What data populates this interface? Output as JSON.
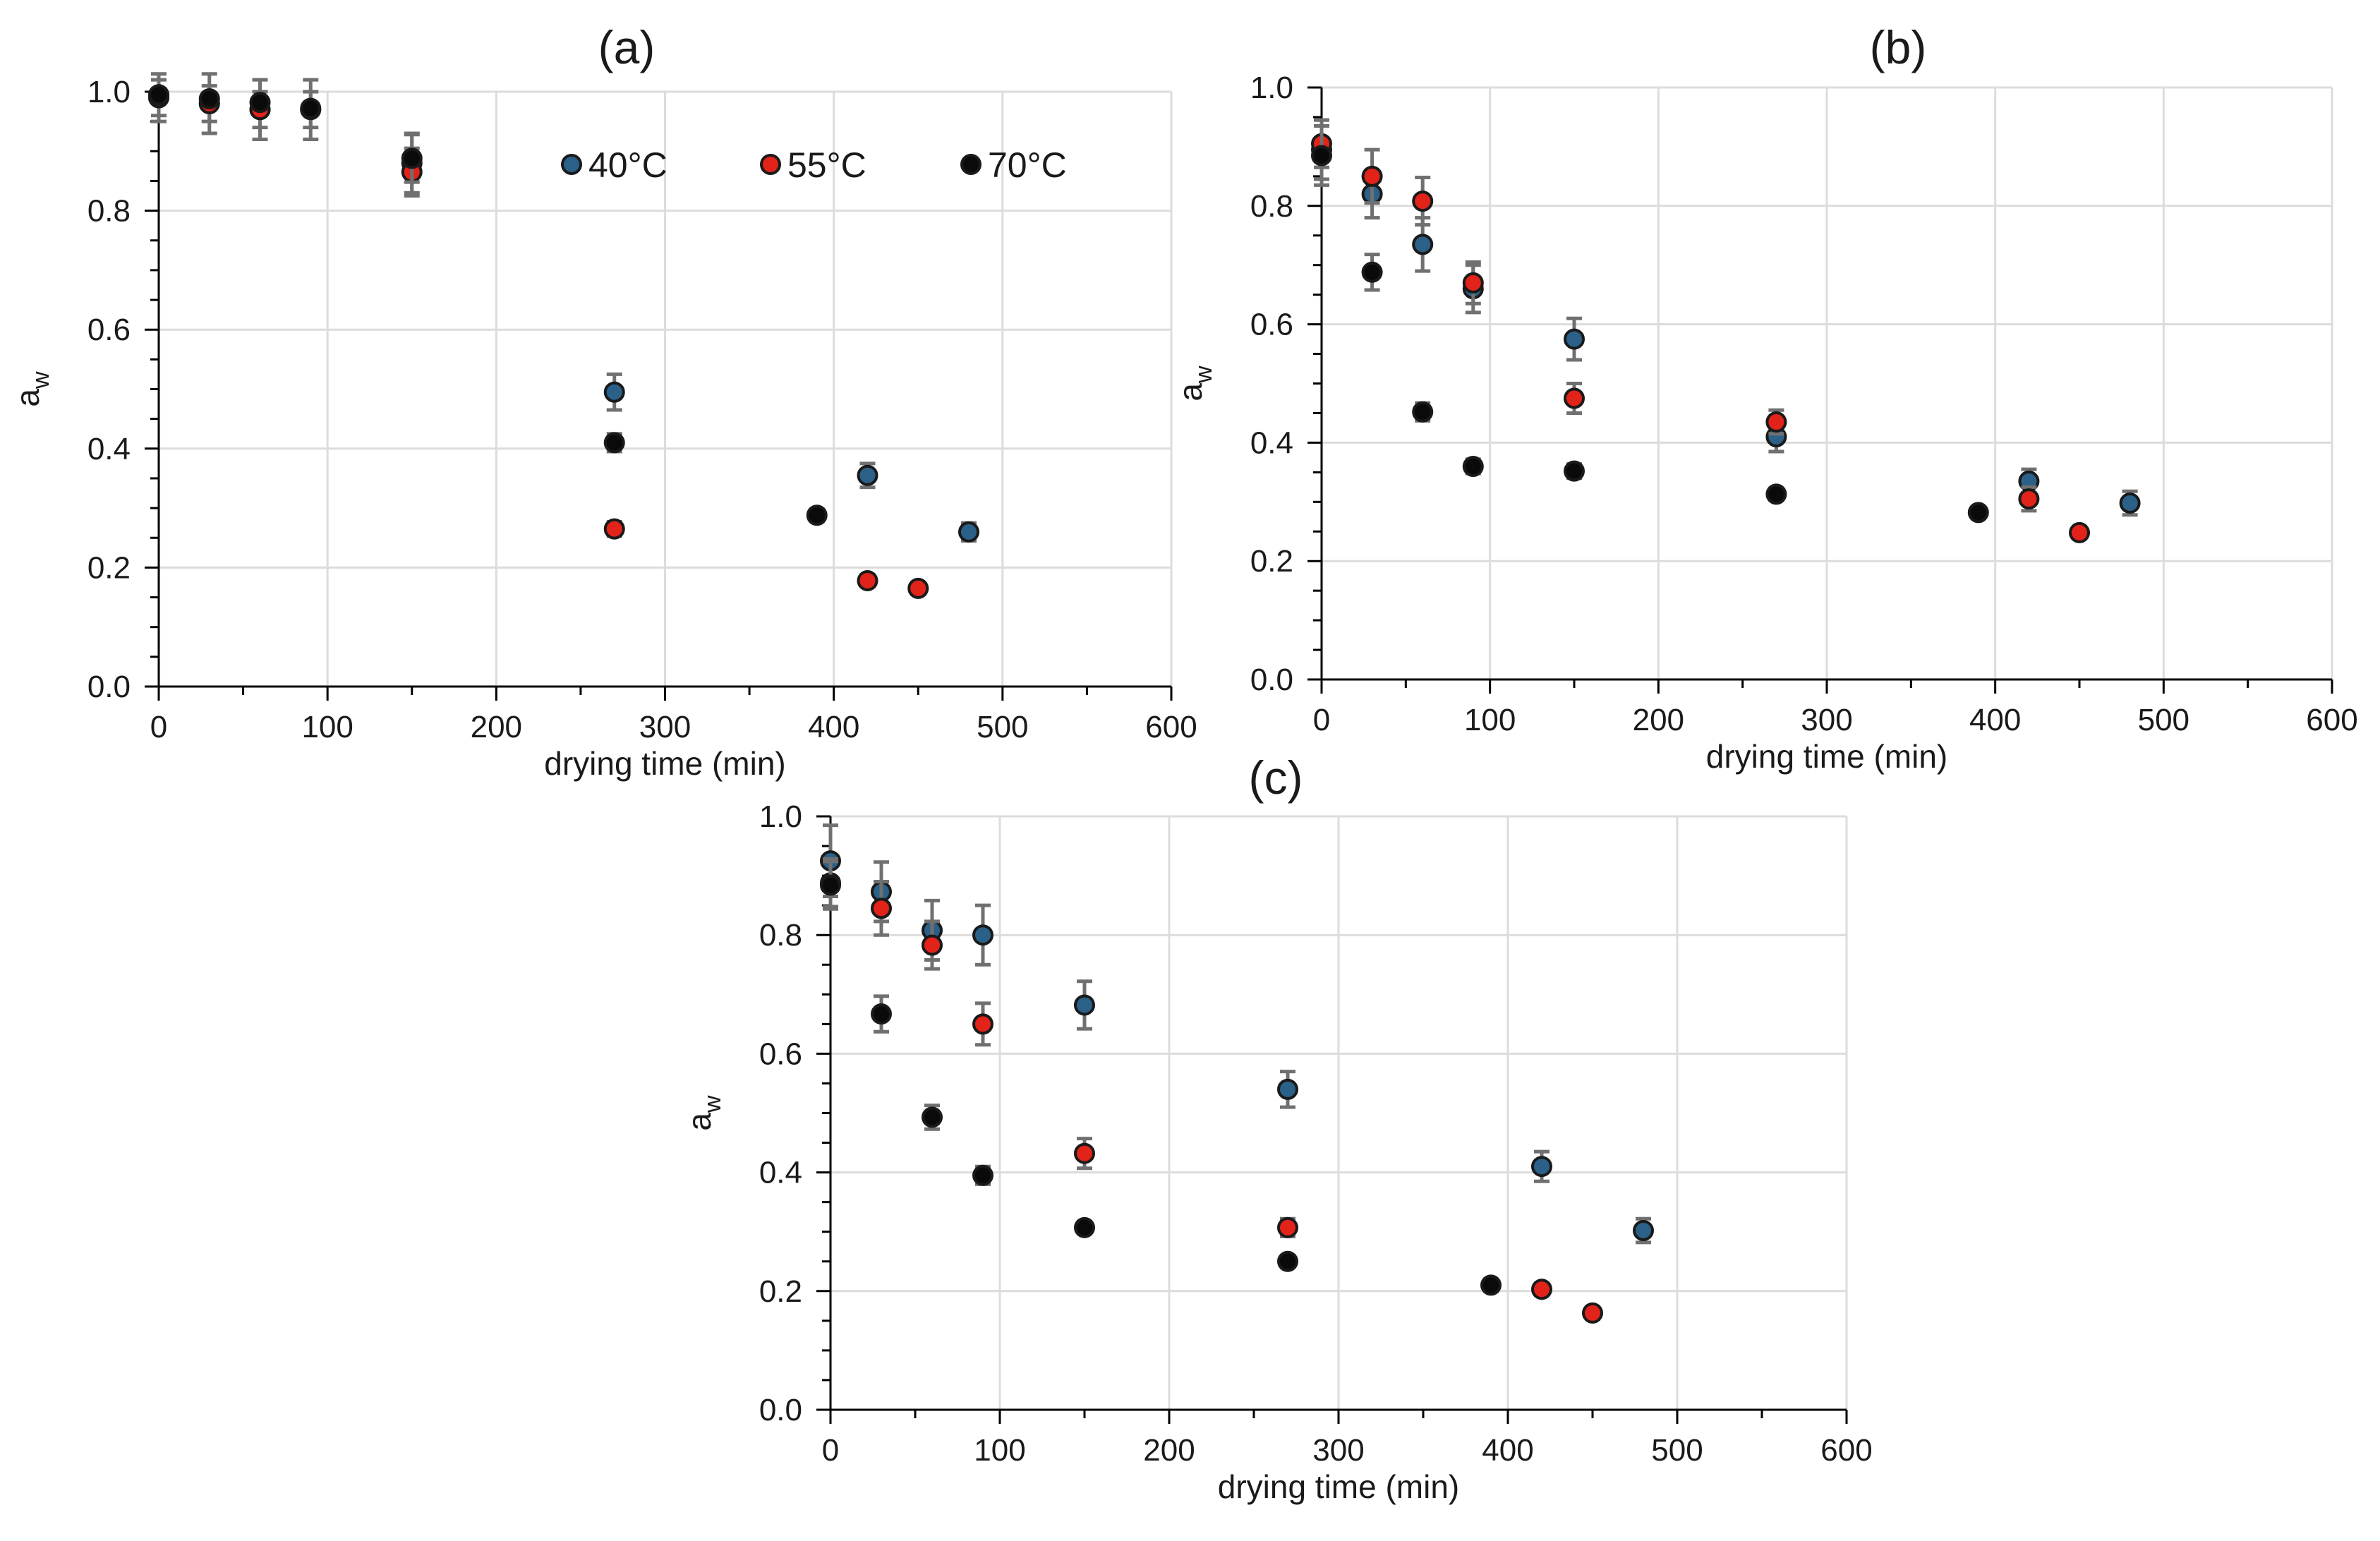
{
  "legend": {
    "placement": "inside-top-right of panel (a)",
    "entries": [
      {
        "series": "40°C",
        "label": "40°C",
        "color": "#2b6188"
      },
      {
        "series": "55°C",
        "label": "55°C",
        "color": "#e2231a"
      },
      {
        "series": "70°C",
        "label": "70°C",
        "color": "#0a0a0a"
      }
    ]
  },
  "chart_data": [
    {
      "type": "scatter",
      "title": "(a)",
      "xlabel": "drying time (min)",
      "ylabel": "a",
      "ylabel_subscript": "w",
      "xlim": [
        0,
        600
      ],
      "ylim": [
        0,
        1.0
      ],
      "xticks": [
        0,
        100,
        200,
        300,
        400,
        500,
        600
      ],
      "xtick_labels": [
        "0",
        "100",
        "200",
        "300",
        "400",
        "500",
        "600"
      ],
      "yticks": [
        0,
        0.2,
        0.4,
        0.6,
        0.8,
        1.0
      ],
      "ytick_labels": [
        "0.0",
        "0.2",
        "0.4",
        "0.6",
        "0.8",
        "1.0"
      ],
      "grid": true,
      "series": [
        {
          "name": "40°C",
          "color": "#2b6188",
          "points": [
            {
              "x": 0,
              "y": 0.99,
              "err": 0.04
            },
            {
              "x": 30,
              "y": 0.98,
              "err": 0.05
            },
            {
              "x": 60,
              "y": 0.97,
              "err": 0.05
            },
            {
              "x": 90,
              "y": 0.97,
              "err": 0.05
            },
            {
              "x": 150,
              "y": 0.88,
              "err": 0.05
            },
            {
              "x": 270,
              "y": 0.495,
              "err": 0.03
            },
            {
              "x": 420,
              "y": 0.355,
              "err": 0.02
            },
            {
              "x": 480,
              "y": 0.26,
              "err": 0.015
            }
          ]
        },
        {
          "name": "55°C",
          "color": "#e2231a",
          "points": [
            {
              "x": 0,
              "y": 0.99,
              "err": 0.03
            },
            {
              "x": 30,
              "y": 0.98,
              "err": 0.03
            },
            {
              "x": 60,
              "y": 0.97,
              "err": 0.03
            },
            {
              "x": 90,
              "y": 0.97,
              "err": 0.03
            },
            {
              "x": 150,
              "y": 0.865,
              "err": 0.04
            },
            {
              "x": 270,
              "y": 0.265,
              "err": 0.012
            },
            {
              "x": 420,
              "y": 0.178,
              "err": 0.01
            },
            {
              "x": 450,
              "y": 0.165,
              "err": 0.01
            }
          ]
        },
        {
          "name": "70°C",
          "color": "#0a0a0a",
          "points": [
            {
              "x": 0,
              "y": 0.995,
              "err": 0.01
            },
            {
              "x": 30,
              "y": 0.988,
              "err": 0.01
            },
            {
              "x": 60,
              "y": 0.982,
              "err": 0.01
            },
            {
              "x": 90,
              "y": 0.972,
              "err": 0.01
            },
            {
              "x": 150,
              "y": 0.888,
              "err": 0.04
            },
            {
              "x": 270,
              "y": 0.41,
              "err": 0.015
            },
            {
              "x": 390,
              "y": 0.288,
              "err": 0.01
            }
          ]
        }
      ]
    },
    {
      "type": "scatter",
      "title": "(b)",
      "xlabel": "drying time (min)",
      "ylabel": "a",
      "ylabel_subscript": "w",
      "xlim": [
        0,
        600
      ],
      "ylim": [
        0,
        1.0
      ],
      "xticks": [
        0,
        100,
        200,
        300,
        400,
        500,
        600
      ],
      "xtick_labels": [
        "0",
        "100",
        "200",
        "300",
        "400",
        "500",
        "600"
      ],
      "yticks": [
        0,
        0.2,
        0.4,
        0.6,
        0.8,
        1.0
      ],
      "ytick_labels": [
        "0.0",
        "0.2",
        "0.4",
        "0.6",
        "0.8",
        "1.0"
      ],
      "grid": true,
      "series": [
        {
          "name": "40°C",
          "color": "#2b6188",
          "points": [
            {
              "x": 0,
              "y": 0.895,
              "err": 0.05
            },
            {
              "x": 30,
              "y": 0.82,
              "err": 0.04
            },
            {
              "x": 60,
              "y": 0.735,
              "err": 0.045
            },
            {
              "x": 90,
              "y": 0.66,
              "err": 0.04
            },
            {
              "x": 150,
              "y": 0.575,
              "err": 0.035
            },
            {
              "x": 270,
              "y": 0.41,
              "err": 0.025
            },
            {
              "x": 420,
              "y": 0.335,
              "err": 0.02
            },
            {
              "x": 480,
              "y": 0.298,
              "err": 0.02
            }
          ]
        },
        {
          "name": "55°C",
          "color": "#e2231a",
          "points": [
            {
              "x": 0,
              "y": 0.905,
              "err": 0.04
            },
            {
              "x": 30,
              "y": 0.85,
              "err": 0.045
            },
            {
              "x": 60,
              "y": 0.808,
              "err": 0.04
            },
            {
              "x": 90,
              "y": 0.67,
              "err": 0.035
            },
            {
              "x": 150,
              "y": 0.475,
              "err": 0.025
            },
            {
              "x": 270,
              "y": 0.435,
              "err": 0.02
            },
            {
              "x": 420,
              "y": 0.305,
              "err": 0.02
            },
            {
              "x": 450,
              "y": 0.248,
              "err": 0.01
            }
          ]
        },
        {
          "name": "70°C",
          "color": "#0a0a0a",
          "points": [
            {
              "x": 0,
              "y": 0.885,
              "err": 0.05
            },
            {
              "x": 30,
              "y": 0.688,
              "err": 0.03
            },
            {
              "x": 60,
              "y": 0.452,
              "err": 0.015
            },
            {
              "x": 90,
              "y": 0.36,
              "err": 0.012
            },
            {
              "x": 150,
              "y": 0.352,
              "err": 0.012
            },
            {
              "x": 270,
              "y": 0.313,
              "err": 0.01
            },
            {
              "x": 390,
              "y": 0.282,
              "err": 0.01
            }
          ]
        }
      ]
    },
    {
      "type": "scatter",
      "title": "(c)",
      "xlabel": "drying time (min)",
      "ylabel": "a",
      "ylabel_subscript": "w",
      "xlim": [
        0,
        600
      ],
      "ylim": [
        0,
        1.0
      ],
      "xticks": [
        0,
        100,
        200,
        300,
        400,
        500,
        600
      ],
      "xtick_labels": [
        "0",
        "100",
        "200",
        "300",
        "400",
        "500",
        "600"
      ],
      "yticks": [
        0,
        0.2,
        0.4,
        0.6,
        0.8,
        1.0
      ],
      "ytick_labels": [
        "0.0",
        "0.2",
        "0.4",
        "0.6",
        "0.8",
        "1.0"
      ],
      "grid": true,
      "series": [
        {
          "name": "40°C",
          "color": "#2b6188",
          "points": [
            {
              "x": 0,
              "y": 0.925,
              "err": 0.06
            },
            {
              "x": 30,
              "y": 0.873,
              "err": 0.05
            },
            {
              "x": 60,
              "y": 0.808,
              "err": 0.05
            },
            {
              "x": 90,
              "y": 0.8,
              "err": 0.05
            },
            {
              "x": 150,
              "y": 0.682,
              "err": 0.04
            },
            {
              "x": 270,
              "y": 0.54,
              "err": 0.03
            },
            {
              "x": 420,
              "y": 0.41,
              "err": 0.025
            },
            {
              "x": 480,
              "y": 0.302,
              "err": 0.02
            }
          ]
        },
        {
          "name": "55°C",
          "color": "#e2231a",
          "points": [
            {
              "x": 0,
              "y": 0.888,
              "err": 0.04
            },
            {
              "x": 30,
              "y": 0.845,
              "err": 0.045
            },
            {
              "x": 60,
              "y": 0.783,
              "err": 0.04
            },
            {
              "x": 90,
              "y": 0.65,
              "err": 0.035
            },
            {
              "x": 150,
              "y": 0.432,
              "err": 0.025
            },
            {
              "x": 270,
              "y": 0.307,
              "err": 0.015
            },
            {
              "x": 420,
              "y": 0.203,
              "err": 0.01
            },
            {
              "x": 450,
              "y": 0.163,
              "err": 0.01
            }
          ]
        },
        {
          "name": "70°C",
          "color": "#0a0a0a",
          "points": [
            {
              "x": 0,
              "y": 0.884,
              "err": 0.04
            },
            {
              "x": 30,
              "y": 0.667,
              "err": 0.03
            },
            {
              "x": 60,
              "y": 0.493,
              "err": 0.02
            },
            {
              "x": 90,
              "y": 0.395,
              "err": 0.015
            },
            {
              "x": 150,
              "y": 0.307,
              "err": 0.01
            },
            {
              "x": 270,
              "y": 0.25,
              "err": 0.01
            },
            {
              "x": 390,
              "y": 0.21,
              "err": 0.01
            }
          ]
        }
      ]
    }
  ]
}
